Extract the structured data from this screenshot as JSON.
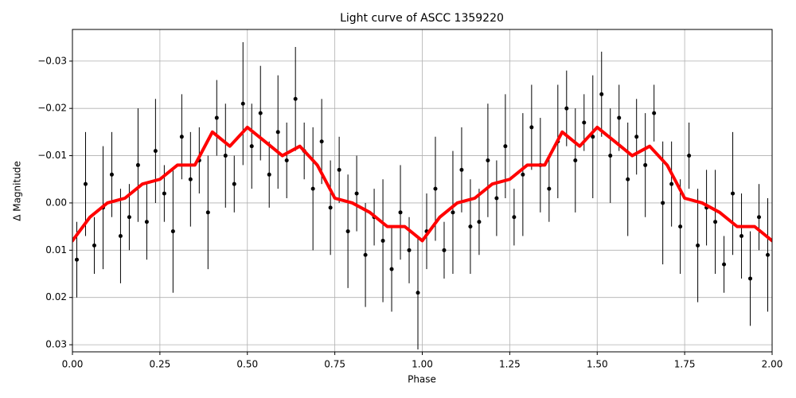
{
  "chart_data": {
    "type": "scatter",
    "title": "Light curve of ASCC 1359220",
    "xlabel": "Phase",
    "ylabel": "Δ Magnitude",
    "xlim": [
      0,
      2
    ],
    "ylim": [
      0.0315,
      -0.0367
    ],
    "grid": true,
    "xticks": [
      {
        "value": 0,
        "label": "0.00"
      },
      0.25,
      {
        "value": 0.5,
        "label": "0.50"
      },
      0.75,
      {
        "value": 1,
        "label": "1.00"
      },
      1.25,
      {
        "value": 1.5,
        "label": "1.50"
      },
      1.75,
      {
        "value": 2,
        "label": "2.00"
      }
    ],
    "yticks": [
      {
        "value": -0.03,
        "label": "−0.03"
      },
      {
        "value": -0.02,
        "label": "−0.02"
      },
      {
        "value": -0.01,
        "label": "−0.01"
      },
      {
        "value": 0,
        "label": "0.00"
      },
      0.01,
      0.02,
      0.03
    ],
    "series": [
      {
        "type": "scatter",
        "color": "#000000",
        "x": [
          0.0125,
          0.0375,
          0.0625,
          0.0875,
          0.1125,
          0.1375,
          0.1625,
          0.1875,
          0.2125,
          0.2375,
          0.2625,
          0.2875,
          0.3125,
          0.3375,
          0.3625,
          0.3875,
          0.4125,
          0.4375,
          0.4625,
          0.4875,
          0.5125,
          0.5375,
          0.5625,
          0.5875,
          0.6125,
          0.6375,
          0.6625,
          0.6875,
          0.7125,
          0.7375,
          0.7625,
          0.7875,
          0.8125,
          0.8375,
          0.8625,
          0.8875,
          0.9125,
          0.9375,
          0.9625,
          0.9875,
          1.0125,
          1.0375,
          1.0625,
          1.0875,
          1.1125,
          1.1375,
          1.1625,
          1.1875,
          1.2125,
          1.2375,
          1.2625,
          1.2875,
          1.3125,
          1.3375,
          1.3625,
          1.3875,
          1.4125,
          1.4375,
          1.4625,
          1.4875,
          1.5125,
          1.5375,
          1.5625,
          1.5875,
          1.6125,
          1.6375,
          1.6625,
          1.6875,
          1.7125,
          1.7375,
          1.7625,
          1.7875,
          1.8125,
          1.8375,
          1.8625,
          1.8875,
          1.9125,
          1.9375,
          1.9625,
          1.9875
        ],
        "values": [
          0.012,
          -0.004,
          0.009,
          0.001,
          -0.006,
          0.007,
          0.003,
          -0.008,
          0.004,
          -0.011,
          -0.002,
          0.006,
          -0.014,
          -0.005,
          -0.009,
          0.002,
          -0.018,
          -0.01,
          -0.004,
          -0.021,
          -0.012,
          -0.019,
          -0.006,
          -0.015,
          -0.009,
          -0.022,
          -0.011,
          -0.003,
          -0.013,
          0.001,
          -0.007,
          0.006,
          -0.002,
          0.011,
          0.003,
          0.008,
          0.014,
          0.002,
          0.01,
          0.019,
          0.006,
          -0.003,
          0.01,
          0.002,
          -0.007,
          0.005,
          0.004,
          -0.009,
          -0.001,
          -0.012,
          0.003,
          -0.006,
          -0.016,
          -0.008,
          -0.003,
          -0.013,
          -0.02,
          -0.009,
          -0.017,
          -0.014,
          -0.023,
          -0.01,
          -0.018,
          -0.005,
          -0.014,
          -0.008,
          -0.019,
          0,
          -0.004,
          0.005,
          -0.01,
          0.009,
          0.001,
          0.004,
          0.013,
          -0.002,
          0.007,
          0.016,
          0.003,
          0.011
        ],
        "errors": [
          0.008,
          0.011,
          0.006,
          0.013,
          0.009,
          0.01,
          0.007,
          0.012,
          0.008,
          0.011,
          0.006,
          0.013,
          0.009,
          0.01,
          0.007,
          0.012,
          0.008,
          0.011,
          0.006,
          0.013,
          0.009,
          0.01,
          0.007,
          0.012,
          0.008,
          0.011,
          0.006,
          0.013,
          0.009,
          0.01,
          0.007,
          0.012,
          0.008,
          0.011,
          0.006,
          0.013,
          0.009,
          0.01,
          0.007,
          0.012,
          0.008,
          0.011,
          0.006,
          0.013,
          0.009,
          0.01,
          0.007,
          0.012,
          0.008,
          0.011,
          0.006,
          0.013,
          0.009,
          0.01,
          0.007,
          0.012,
          0.008,
          0.011,
          0.006,
          0.013,
          0.009,
          0.01,
          0.007,
          0.012,
          0.008,
          0.011,
          0.006,
          0.013,
          0.009,
          0.01,
          0.007,
          0.012,
          0.008,
          0.011,
          0.006,
          0.013,
          0.009,
          0.01,
          0.007,
          0.012
        ]
      },
      {
        "type": "line",
        "color": "#ff0000",
        "x": [
          0,
          0.05,
          0.1,
          0.15,
          0.2,
          0.25,
          0.3,
          0.35,
          0.4,
          0.45,
          0.5,
          0.55,
          0.6,
          0.65,
          0.7,
          0.75,
          0.8,
          0.85,
          0.9,
          0.95,
          1,
          1.05,
          1.1,
          1.15,
          1.2,
          1.25,
          1.3,
          1.35,
          1.4,
          1.45,
          1.5,
          1.55,
          1.6,
          1.65,
          1.7,
          1.75,
          1.8,
          1.85,
          1.9,
          1.95,
          2
        ],
        "values": [
          0.008,
          0.003,
          0,
          -0.001,
          -0.004,
          -0.005,
          -0.008,
          -0.008,
          -0.015,
          -0.012,
          -0.016,
          -0.013,
          -0.01,
          -0.012,
          -0.008,
          -0.001,
          0,
          0.002,
          0.005,
          0.005,
          0.008,
          0.003,
          0,
          -0.001,
          -0.004,
          -0.005,
          -0.008,
          -0.008,
          -0.015,
          -0.012,
          -0.016,
          -0.013,
          -0.01,
          -0.012,
          -0.008,
          -0.001,
          0,
          0.002,
          0.005,
          0.005,
          0.008
        ]
      }
    ]
  }
}
